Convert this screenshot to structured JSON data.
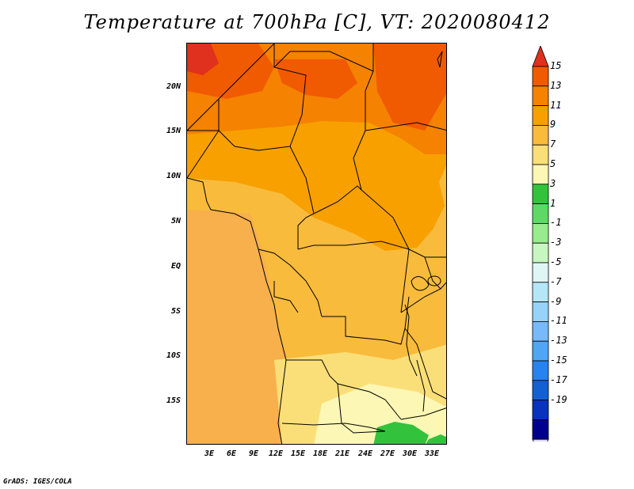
{
  "title": "Temperature at 700hPa [C], VT: 2020080412",
  "footer": "GrADS: IGES/COLA",
  "map": {
    "lat_labels": [
      "20N",
      "15N",
      "10N",
      "5N",
      "EQ",
      "5S",
      "10S",
      "15S"
    ],
    "lon_labels": [
      "3E",
      "6E",
      "9E",
      "12E",
      "15E",
      "18E",
      "21E",
      "24E",
      "27E",
      "30E",
      "33E"
    ]
  },
  "colorbar": {
    "labels": [
      "15",
      "13",
      "11",
      "9",
      "7",
      "5",
      "3",
      "1",
      "-1",
      "-3",
      "-5",
      "-7",
      "-9",
      "-11",
      "-13",
      "-15",
      "-17",
      "-19"
    ],
    "colors": [
      "#e0301e",
      "#f05a00",
      "#f58200",
      "#f8a000",
      "#f8bb3c",
      "#fadf78",
      "#fcf7b4",
      "#33c23c",
      "#60d866",
      "#98eb8e",
      "#c8f6c0",
      "#e0f5f5",
      "#b4e6f8",
      "#96d2fa",
      "#78b9fa",
      "#50a5f5",
      "#2882f0",
      "#1460d2",
      "#0a32be",
      "#00008c",
      "#dcdcf5"
    ]
  }
}
